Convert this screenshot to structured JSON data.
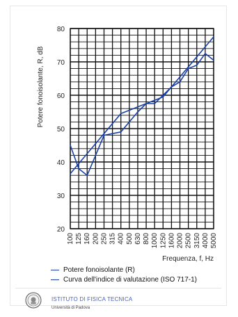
{
  "chart_data": {
    "type": "line",
    "ylabel": "Potere fonoisolante, R, dB",
    "xlabel": "Frequenza, f, Hz",
    "ylim": [
      20,
      80
    ],
    "yticks": [
      20,
      30,
      40,
      50,
      60,
      70,
      80
    ],
    "categories": [
      "100",
      "125",
      "160",
      "200",
      "250",
      "315",
      "400",
      "500",
      "630",
      "800",
      "1000",
      "1250",
      "1600",
      "2000",
      "2500",
      "3150",
      "4000",
      "5000"
    ],
    "series": [
      {
        "name": "Potere fonoisolante (R)",
        "color": "#1a3fa8",
        "values": [
          45,
          38,
          36,
          42,
          48,
          48.5,
          49,
          52,
          55,
          57.5,
          57.5,
          60,
          62.5,
          64,
          68,
          69,
          72.5,
          70.5
        ]
      },
      {
        "name": "Curva dell'indice di valutazione (ISO 717-1)",
        "color": "#1a3fa8",
        "values": [
          36.5,
          39.5,
          42.5,
          45.5,
          48.5,
          51.5,
          54.5,
          55.5,
          56.5,
          57.5,
          58.5,
          59.5,
          62.5,
          65.5,
          68.5,
          71.5,
          74.5,
          77.5
        ]
      }
    ],
    "grid": true,
    "legend_position": "bottom-left"
  },
  "legend": {
    "items": [
      {
        "label": "Potere fonoisolante (R)"
      },
      {
        "label": "Curva dell'indice di valutazione (ISO 717-1)"
      }
    ]
  },
  "footer": {
    "institute": "ISTITUTO DI FISICA TECNICA",
    "university": "Università di Padova",
    "logo_icon": "university-seal-icon"
  }
}
